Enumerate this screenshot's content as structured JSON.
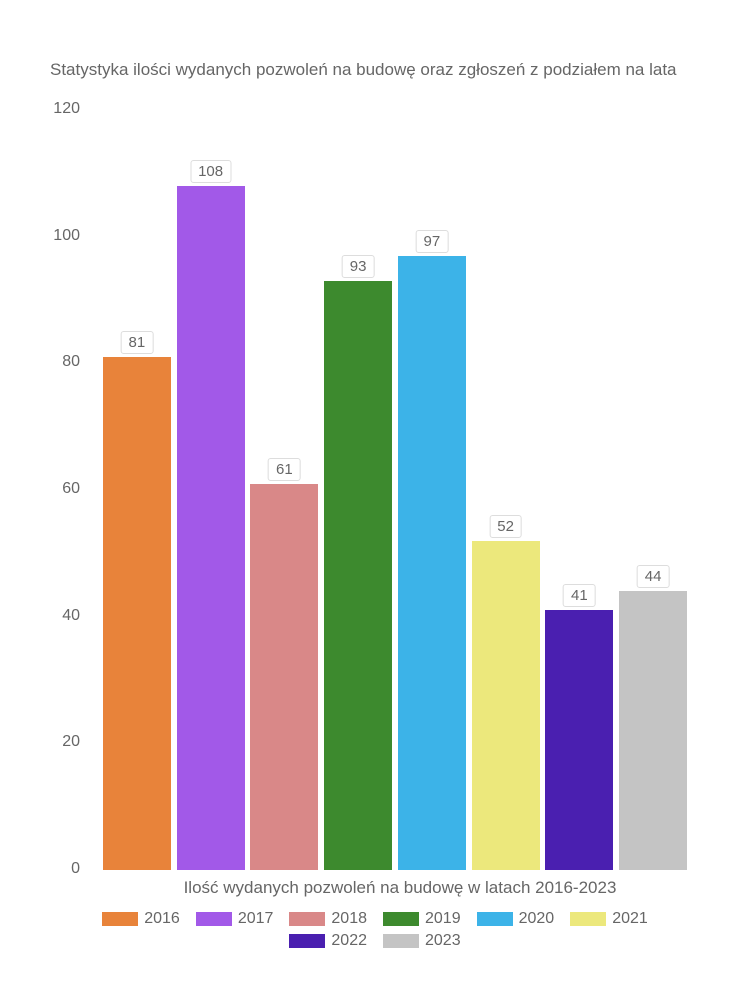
{
  "chart": {
    "type": "bar",
    "title": "Statystyka ilości wydanych pozwoleń na budowę oraz zgłoszeń z podziałem na lata",
    "title_fontsize": 17,
    "title_color": "#666666",
    "xlabel": "Ilość wydanych pozwoleń na budowę w latach 2016-2023",
    "xlabel_fontsize": 17,
    "background_color": "#ffffff",
    "ylim": [
      0,
      120
    ],
    "ytick_step": 20,
    "yticks": [
      0,
      20,
      40,
      60,
      80,
      100,
      120
    ],
    "tick_fontsize": 16,
    "tick_color": "#666666",
    "bar_width_ratio": 0.92,
    "categories": [
      "2016",
      "2017",
      "2018",
      "2019",
      "2020",
      "2021",
      "2022",
      "2023"
    ],
    "values": [
      81,
      108,
      61,
      93,
      97,
      52,
      41,
      44
    ],
    "bar_colors": [
      "#e8833a",
      "#a259e8",
      "#d98888",
      "#3d8a2e",
      "#3cb3e8",
      "#ece87c",
      "#4a1fb0",
      "#c4c4c4"
    ],
    "data_label_fontsize": 15,
    "data_label_bg": "#ffffff",
    "data_label_border": "#dddddd",
    "legend_swatch_width": 36,
    "legend_swatch_height": 14,
    "legend_fontsize": 16
  }
}
